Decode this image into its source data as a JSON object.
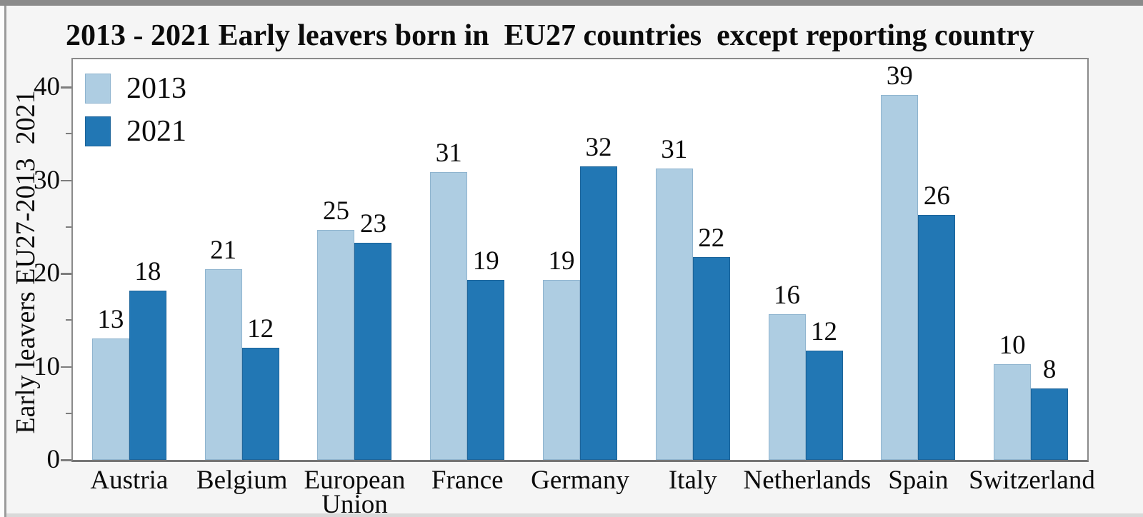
{
  "window": {
    "top_bar_color": "#8b8b8b",
    "left_border_color": "#9b9b9b",
    "background": "#f5f5f5",
    "bottom_edge_color": "#d9d9d9"
  },
  "chart_data": {
    "type": "bar",
    "title": "2013 - 2021 Early leavers born in  EU27 countries  except reporting country",
    "xlabel": "",
    "ylabel": "Early leavers EU27-2013  2021",
    "categories": [
      "Austria",
      "Belgium",
      "European Union",
      "France",
      "Germany",
      "Italy",
      "Netherlands",
      "Spain",
      "Switzerland"
    ],
    "series": [
      {
        "name": "2013",
        "color": "#aecde2",
        "edge_color": "#8fb4cf",
        "values": [
          13.0,
          20.5,
          24.7,
          30.9,
          19.3,
          31.3,
          15.6,
          39.2,
          10.3
        ],
        "labels": [
          "13",
          "21",
          "25",
          "31",
          "19",
          "31",
          "16",
          "39",
          "10"
        ]
      },
      {
        "name": "2021",
        "color": "#2277b4",
        "edge_color": "#1c649a",
        "values": [
          18.2,
          12.0,
          23.3,
          19.3,
          31.5,
          21.8,
          11.7,
          26.3,
          7.7
        ],
        "labels": [
          "18",
          "12",
          "23",
          "19",
          "32",
          "22",
          "12",
          "26",
          "8"
        ]
      }
    ],
    "ylim": [
      0,
      43
    ],
    "yticks_major": [
      0,
      10,
      20,
      30,
      40
    ],
    "yticks_minor": [
      5,
      15,
      25,
      35
    ],
    "grid": false,
    "legend_position": "top-left",
    "plot_background": "#ffffff",
    "axis_color": "#8a8a8a",
    "text_color": "#111111"
  },
  "legend": {
    "items": [
      {
        "label": "2013"
      },
      {
        "label": "2021"
      }
    ]
  }
}
